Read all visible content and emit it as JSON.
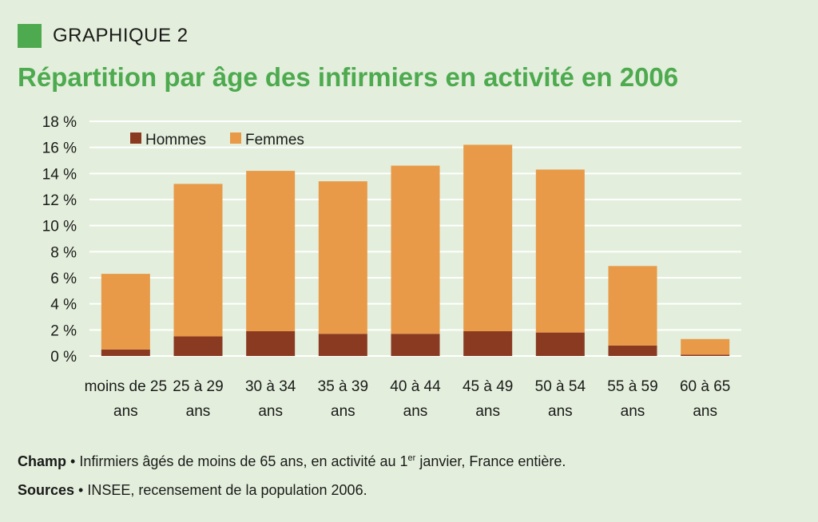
{
  "header": {
    "kicker": "GRAPHIQUE 2",
    "title": "Répartition par âge des infirmiers en activité en 2006"
  },
  "colors": {
    "accent": "#4daa4f",
    "hommes": "#8b3a22",
    "femmes": "#e89a48",
    "grid": "#ffffff"
  },
  "chart_data": {
    "type": "bar",
    "stacked": true,
    "title": "Répartition par âge des infirmiers en activité en 2006",
    "xlabel": "",
    "ylabel": "",
    "ylim": [
      0,
      18
    ],
    "yticks": [
      0,
      2,
      4,
      6,
      8,
      10,
      12,
      14,
      16,
      18
    ],
    "ytick_labels": [
      "0 %",
      "2 %",
      "4 %",
      "6 %",
      "8 %",
      "10 %",
      "12 %",
      "14 %",
      "16 %",
      "18 %"
    ],
    "categories": [
      [
        "moins de 25",
        "ans"
      ],
      [
        "25 à 29",
        "ans"
      ],
      [
        "30 à 34",
        "ans"
      ],
      [
        "35 à 39",
        "ans"
      ],
      [
        "40 à 44",
        "ans"
      ],
      [
        "45 à 49",
        "ans"
      ],
      [
        "50 à 54",
        "ans"
      ],
      [
        "55 à 59",
        "ans"
      ],
      [
        "60 à 65",
        "ans"
      ]
    ],
    "series": [
      {
        "name": "Hommes",
        "values": [
          0.5,
          1.5,
          1.9,
          1.7,
          1.7,
          1.9,
          1.8,
          0.8,
          0.1
        ]
      },
      {
        "name": "Femmes",
        "values": [
          5.8,
          11.7,
          12.3,
          11.7,
          12.9,
          14.3,
          12.5,
          6.1,
          1.2
        ]
      }
    ],
    "legend": [
      "Hommes",
      "Femmes"
    ],
    "legend_position": "top-left",
    "grid": true
  },
  "notes": {
    "champ_label": "Champ",
    "champ_text_1": " • Infirmiers âgés de moins de 65 ans, en activité au 1",
    "champ_sup": "er",
    "champ_text_2": " janvier, France entière.",
    "sources_label": "Sources",
    "sources_text": " • INSEE, recensement de la population 2006."
  }
}
